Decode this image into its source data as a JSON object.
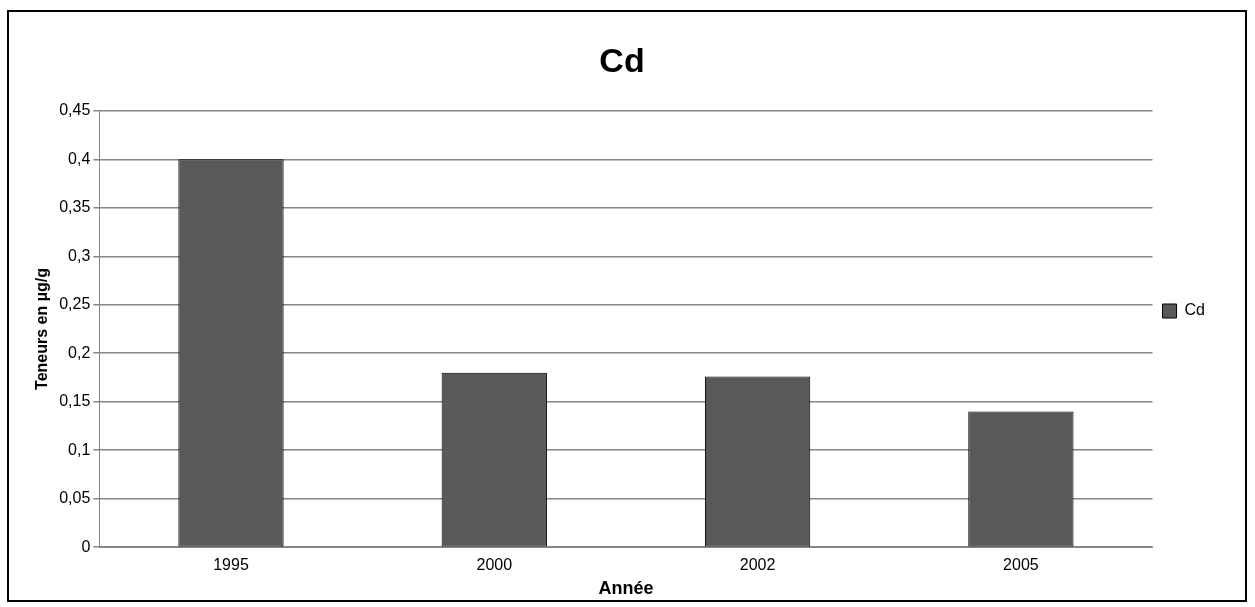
{
  "chart_data": {
    "type": "bar",
    "title": "Cd",
    "xlabel": "Année",
    "ylabel": "Teneurs en µg/g",
    "categories": [
      "1995",
      "2000",
      "2002",
      "2005"
    ],
    "series": [
      {
        "name": "Cd",
        "color": "#595959",
        "values": [
          0.4,
          0.18,
          0.176,
          0.14
        ]
      }
    ],
    "ylim": [
      0,
      0.45
    ],
    "yticks": [
      {
        "value": 0,
        "label": "0"
      },
      {
        "value": 0.05,
        "label": "0,05"
      },
      {
        "value": 0.1,
        "label": "0,1"
      },
      {
        "value": 0.15,
        "label": "0,15"
      },
      {
        "value": 0.2,
        "label": "0,2"
      },
      {
        "value": 0.25,
        "label": "0,25"
      },
      {
        "value": 0.3,
        "label": "0,3"
      },
      {
        "value": 0.35,
        "label": "0,35"
      },
      {
        "value": 0.4,
        "label": "0,4"
      },
      {
        "value": 0.45,
        "label": "0,45"
      }
    ],
    "grid": "y",
    "legend": "right"
  }
}
